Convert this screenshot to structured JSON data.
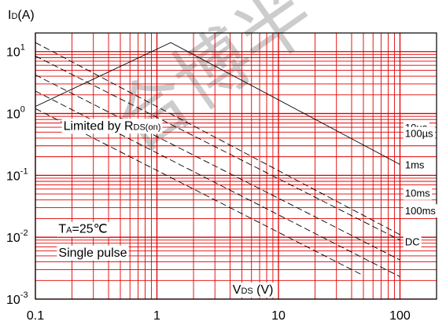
{
  "chart_data": {
    "type": "line",
    "title": "",
    "xlabel": {
      "main": "V",
      "sub": "DS",
      "unit": " (V)"
    },
    "ylabel": {
      "main": "I",
      "sub": "D",
      "unit": "(A)"
    },
    "x_scale": "log",
    "y_scale": "log",
    "xlim": [
      0.1,
      200
    ],
    "ylim": [
      0.001,
      20
    ],
    "grid": true,
    "grid_color": "#e00000",
    "x_ticks": [
      {
        "value": 0.1,
        "label": "0.1"
      },
      {
        "value": 1,
        "label": "1"
      },
      {
        "value": 10,
        "label": "10"
      },
      {
        "value": 100,
        "label": "100"
      }
    ],
    "y_ticks": [
      {
        "value": 10,
        "base": "10",
        "exp": "1"
      },
      {
        "value": 1,
        "base": "10",
        "exp": "0"
      },
      {
        "value": 0.1,
        "base": "10",
        "exp": "-1"
      },
      {
        "value": 0.01,
        "base": "10",
        "exp": "-2"
      },
      {
        "value": 0.001,
        "base": "10",
        "exp": "-3"
      }
    ],
    "series": [
      {
        "name": "10µs",
        "style": "solid",
        "x": [
          0.1,
          1.3,
          100
        ],
        "y": [
          1.3,
          14,
          0.15
        ]
      },
      {
        "name": "100µs",
        "style": "dashed",
        "x": [
          0.1,
          100
        ],
        "y": [
          14,
          0.011
        ]
      },
      {
        "name": "1ms",
        "style": "dashed",
        "x": [
          0.1,
          100
        ],
        "y": [
          8.5,
          0.009
        ]
      },
      {
        "name": "10ms",
        "style": "dashed",
        "x": [
          0.1,
          100
        ],
        "y": [
          4.2,
          0.0043
        ]
      },
      {
        "name": "100ms",
        "style": "dashed",
        "x": [
          0.1,
          100
        ],
        "y": [
          2.3,
          0.0023
        ]
      },
      {
        "name": "DC",
        "style": "dashed",
        "x": [
          0.1,
          50
        ],
        "y": [
          1.2,
          0.0024
        ]
      }
    ],
    "curve_labels": [
      {
        "text": "10µs",
        "x": 110,
        "y": 0.6
      },
      {
        "text": "100µs",
        "x": 110,
        "y": 0.48
      },
      {
        "text": "1ms",
        "x": 110,
        "y": 0.15
      },
      {
        "text": "10ms",
        "x": 110,
        "y": 0.052
      },
      {
        "text": "100ms",
        "x": 110,
        "y": 0.027
      },
      {
        "text": "DC",
        "x": 110,
        "y": 0.0085
      }
    ],
    "annotations": [
      {
        "parts": [
          {
            "t": "Limited by R",
            "sub": false
          },
          {
            "t": "DS(on)",
            "sub": true
          }
        ],
        "x": 0.17,
        "y": 0.65
      },
      {
        "parts": [
          {
            "t": "T",
            "sub": false
          },
          {
            "t": "A",
            "sub": true
          },
          {
            "t": "=25℃",
            "sub": false
          }
        ],
        "x": 0.155,
        "y": 0.014
      },
      {
        "parts": [
          {
            "t": "Single pulse",
            "sub": false
          }
        ],
        "x": 0.155,
        "y": 0.0058
      }
    ]
  },
  "watermark": {
    "text": "合博半",
    "color": "#cccccc"
  }
}
